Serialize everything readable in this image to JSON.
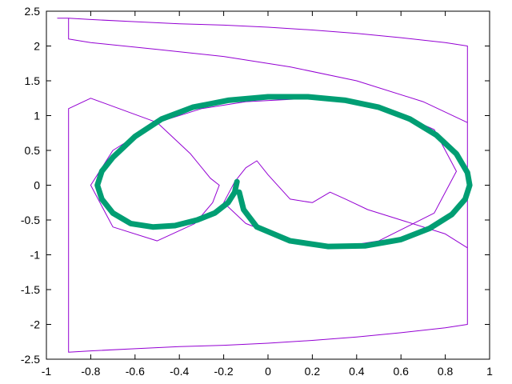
{
  "chart_data": {
    "type": "line",
    "title": "",
    "xlabel": "",
    "ylabel": "",
    "xlim": [
      -1,
      1
    ],
    "ylim": [
      -2.5,
      2.5
    ],
    "grid": false,
    "legend": "none",
    "x_ticks": [
      {
        "value": -1,
        "label": "-1"
      },
      {
        "value": -0.8,
        "label": "-0.8"
      },
      {
        "value": -0.6,
        "label": "-0.6"
      },
      {
        "value": -0.4,
        "label": "-0.4"
      },
      {
        "value": -0.2,
        "label": "-0.2"
      },
      {
        "value": 0,
        "label": "0"
      },
      {
        "value": 0.2,
        "label": "0.2"
      },
      {
        "value": 0.4,
        "label": "0.4"
      },
      {
        "value": 0.6,
        "label": "0.6"
      },
      {
        "value": 0.8,
        "label": "0.8"
      },
      {
        "value": 1,
        "label": "1"
      }
    ],
    "y_ticks": [
      {
        "value": 2.5,
        "label": "2.5"
      },
      {
        "value": 2,
        "label": "2"
      },
      {
        "value": 1.5,
        "label": "1.5"
      },
      {
        "value": 1,
        "label": "1"
      },
      {
        "value": 0.5,
        "label": "0.5"
      },
      {
        "value": 0,
        "label": "0"
      },
      {
        "value": -0.5,
        "label": "-0.5"
      },
      {
        "value": -1,
        "label": "-1"
      },
      {
        "value": -1.5,
        "label": "-1.5"
      },
      {
        "value": -2,
        "label": "-2"
      },
      {
        "value": -2.5,
        "label": "-2.5"
      }
    ],
    "series": [
      {
        "color": "#9400d3",
        "style": "thin",
        "x": [
          -0.95,
          -0.9,
          -0.8,
          -0.6,
          -0.4,
          -0.2,
          0,
          0.2,
          0.4,
          0.6,
          0.8,
          0.9,
          0.9,
          0.8,
          0.6,
          0.4,
          0.2,
          0,
          -0.2,
          -0.4,
          -0.6,
          -0.8,
          -0.9,
          -0.9,
          -0.8,
          -0.5,
          -0.35,
          -0.26,
          -0.22,
          -0.25,
          -0.33,
          -0.5,
          -0.7,
          -0.8,
          -0.7,
          -0.5,
          -0.3,
          -0.1,
          0.2,
          0.5,
          0.75,
          0.85,
          0.75,
          0.5,
          0.3,
          0.1,
          -0.1,
          -0.2,
          -0.15,
          -0.1,
          -0.05,
          0,
          0.1,
          0.2,
          0.28,
          0.35,
          0.45,
          0.6,
          0.8,
          0.9,
          0.9,
          0.7,
          0.4,
          0.1,
          -0.2,
          -0.5,
          -0.8,
          -0.9,
          -0.9
        ],
        "y": [
          2.4,
          2.4,
          2.38,
          2.35,
          2.32,
          2.3,
          2.27,
          2.23,
          2.18,
          2.12,
          2.05,
          2.0,
          -2.0,
          -2.05,
          -2.12,
          -2.18,
          -2.23,
          -2.27,
          -2.3,
          -2.32,
          -2.35,
          -2.38,
          -2.4,
          1.1,
          1.25,
          0.9,
          0.45,
          0.1,
          0.0,
          -0.25,
          -0.55,
          -0.8,
          -0.6,
          0.0,
          0.5,
          0.9,
          1.1,
          1.2,
          1.25,
          1.15,
          0.8,
          0.2,
          -0.4,
          -0.8,
          -0.9,
          -0.8,
          -0.55,
          -0.25,
          0.05,
          0.25,
          0.35,
          0.15,
          -0.2,
          -0.25,
          -0.1,
          -0.2,
          -0.35,
          -0.5,
          -0.7,
          -0.9,
          0.9,
          1.2,
          1.5,
          1.7,
          1.85,
          1.95,
          2.05,
          2.1,
          2.4
        ]
      },
      {
        "color": "#009e73",
        "style": "thick",
        "x": [
          -0.14,
          -0.15,
          -0.18,
          -0.24,
          -0.32,
          -0.42,
          -0.52,
          -0.62,
          -0.7,
          -0.75,
          -0.77,
          -0.75,
          -0.7,
          -0.6,
          -0.48,
          -0.34,
          -0.18,
          0.0,
          0.18,
          0.35,
          0.5,
          0.64,
          0.76,
          0.85,
          0.9,
          0.91,
          0.89,
          0.83,
          0.73,
          0.6,
          0.44,
          0.27,
          0.1,
          -0.05,
          -0.11,
          -0.13
        ],
        "y": [
          0.05,
          -0.1,
          -0.25,
          -0.4,
          -0.5,
          -0.58,
          -0.6,
          -0.55,
          -0.4,
          -0.2,
          0.0,
          0.2,
          0.4,
          0.7,
          0.95,
          1.12,
          1.22,
          1.27,
          1.27,
          1.22,
          1.12,
          0.95,
          0.72,
          0.45,
          0.18,
          0.0,
          -0.2,
          -0.42,
          -0.62,
          -0.78,
          -0.87,
          -0.88,
          -0.8,
          -0.6,
          -0.35,
          -0.1
        ]
      }
    ]
  }
}
